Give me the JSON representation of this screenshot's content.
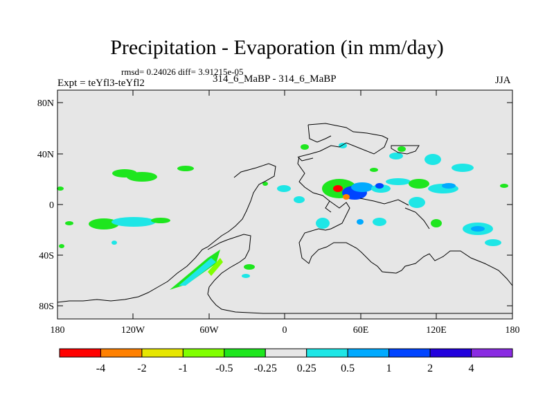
{
  "title": "Precipitation - Evaporation (in mm/day)",
  "stats_text": "rmsd= 0.24026  diff= 3.91215e-05",
  "left_label": "Expt = teYfl3-teYfl2",
  "center_label": "314_6_MaBP - 314_6_MaBP",
  "right_label": "JJA",
  "y_ticks": [
    "80N",
    "40N",
    "0",
    "40S",
    "80S"
  ],
  "x_ticks": [
    "180",
    "120W",
    "60W",
    "0",
    "60E",
    "120E",
    "180"
  ],
  "colorbar": {
    "labels": [
      "-4",
      "-2",
      "-1",
      "-0.5",
      "-0.25",
      "0.25",
      "0.5",
      "1",
      "2",
      "4"
    ],
    "colors": [
      "#ff0000",
      "#ff8000",
      "#e6e600",
      "#80ff00",
      "#1ee61e",
      "#e6e6e6",
      "#1ee6e6",
      "#00aaff",
      "#0044ff",
      "#2200dd",
      "#8a2be2"
    ]
  },
  "colors": {
    "land_bg": "#e6e6e6",
    "outline": "#000000"
  }
}
